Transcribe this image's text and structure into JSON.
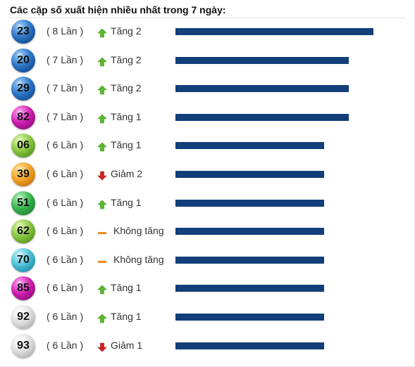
{
  "header": {
    "title": "Các cặp số xuất hiện nhiều nhất trong 7 ngày:"
  },
  "colors": {
    "bar": "#123e7a",
    "up": "#5cb82e",
    "down": "#d42020",
    "same": "#f08a24"
  },
  "max_count": 8,
  "rows": [
    {
      "number": "23",
      "ball_color": "blue",
      "count": 8,
      "count_label": "( 8 Lần )",
      "trend": "up",
      "trend_label": "Tăng 2"
    },
    {
      "number": "20",
      "ball_color": "blue",
      "count": 7,
      "count_label": "( 7 Lần )",
      "trend": "up",
      "trend_label": "Tăng 2"
    },
    {
      "number": "29",
      "ball_color": "blue",
      "count": 7,
      "count_label": "( 7 Lần )",
      "trend": "up",
      "trend_label": "Tăng 2"
    },
    {
      "number": "82",
      "ball_color": "pink",
      "count": 7,
      "count_label": "( 7 Lần )",
      "trend": "up",
      "trend_label": "Tăng 1"
    },
    {
      "number": "06",
      "ball_color": "lime",
      "count": 6,
      "count_label": "( 6 Lần )",
      "trend": "up",
      "trend_label": "Tăng 1"
    },
    {
      "number": "39",
      "ball_color": "orange",
      "count": 6,
      "count_label": "( 6 Lần )",
      "trend": "down",
      "trend_label": "Giảm 2"
    },
    {
      "number": "51",
      "ball_color": "green2",
      "count": 6,
      "count_label": "( 6 Lần )",
      "trend": "up",
      "trend_label": "Tăng 1"
    },
    {
      "number": "62",
      "ball_color": "lime",
      "count": 6,
      "count_label": "( 6 Lần )",
      "trend": "same",
      "trend_label": "Không tăng"
    },
    {
      "number": "70",
      "ball_color": "cyan",
      "count": 6,
      "count_label": "( 6 Lần )",
      "trend": "same",
      "trend_label": "Không tăng"
    },
    {
      "number": "85",
      "ball_color": "pink",
      "count": 6,
      "count_label": "( 6 Lần )",
      "trend": "up",
      "trend_label": "Tăng 1"
    },
    {
      "number": "92",
      "ball_color": "grey",
      "count": 6,
      "count_label": "( 6 Lần )",
      "trend": "up",
      "trend_label": "Tăng 1"
    },
    {
      "number": "93",
      "ball_color": "grey",
      "count": 6,
      "count_label": "( 6 Lần )",
      "trend": "down",
      "trend_label": "Giảm 1"
    }
  ]
}
